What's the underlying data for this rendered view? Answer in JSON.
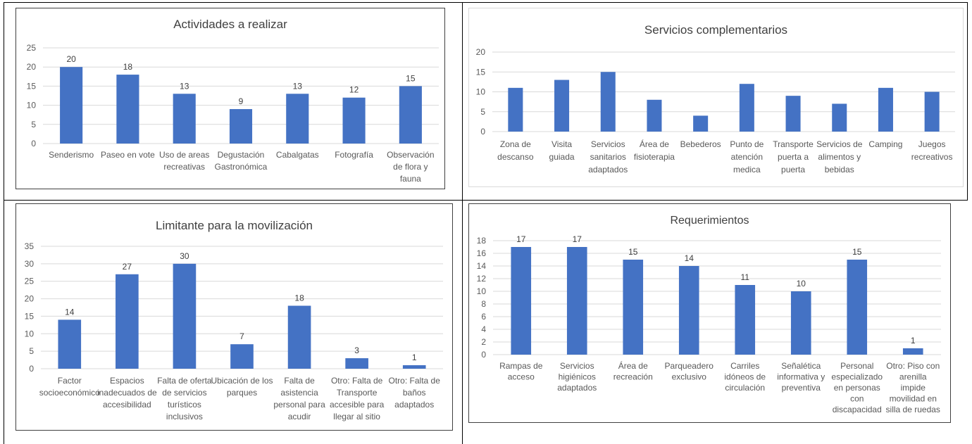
{
  "colors": {
    "bar": "#4472C4",
    "grid": "#d9d9d9",
    "text": "#595959"
  },
  "chart_data": [
    {
      "type": "bar",
      "title": "Actividades a realizar",
      "categories": [
        [
          "Senderismo"
        ],
        [
          "Paseo en vote"
        ],
        [
          "Uso de areas",
          "recreativas"
        ],
        [
          "Degustación",
          "Gastronómica"
        ],
        [
          "Cabalgatas"
        ],
        [
          "Fotografía"
        ],
        [
          "Observación",
          "de flora y",
          "fauna"
        ]
      ],
      "values": [
        20,
        18,
        13,
        9,
        13,
        12,
        15
      ],
      "data_labels": true,
      "ylim": [
        0,
        25
      ],
      "yticks": [
        0,
        5,
        10,
        15,
        20,
        25
      ],
      "grid": true,
      "xlabel": "",
      "ylabel": ""
    },
    {
      "type": "bar",
      "title": "Servicios complementarios",
      "categories": [
        [
          "Zona de",
          "descanso"
        ],
        [
          "Visita",
          "guiada"
        ],
        [
          "Servicios",
          "sanitarios",
          "adaptados"
        ],
        [
          "Área de",
          "fisioterapia"
        ],
        [
          "Bebederos"
        ],
        [
          "Punto de",
          "atención",
          "medica"
        ],
        [
          "Transporte",
          "puerta a",
          "puerta"
        ],
        [
          "Servicios de",
          "alimentos y",
          "bebidas"
        ],
        [
          "Camping"
        ],
        [
          "Juegos",
          "recreativos"
        ]
      ],
      "values": [
        11,
        13,
        15,
        8,
        4,
        12,
        9,
        7,
        11,
        10
      ],
      "data_labels": false,
      "ylim": [
        0,
        20
      ],
      "yticks": [
        0,
        5,
        10,
        15,
        20
      ],
      "grid": true,
      "xlabel": "",
      "ylabel": ""
    },
    {
      "type": "bar",
      "title": "Limitante para la movilización",
      "categories": [
        [
          "Factor",
          "socioeconómico"
        ],
        [
          "Espacios",
          "inadecuados de",
          "accesibilidad"
        ],
        [
          "Falta de oferta",
          "de servicios",
          "turísticos",
          "inclusivos"
        ],
        [
          "Ubicación de los",
          "parques"
        ],
        [
          "Falta de",
          "asistencia",
          "personal para",
          "acudir"
        ],
        [
          "Otro: Falta de",
          "Transporte",
          "accesible para",
          "llegar al sitio"
        ],
        [
          "Otro: Falta de",
          "baños",
          "adaptados"
        ]
      ],
      "values": [
        14,
        27,
        30,
        7,
        18,
        3,
        1
      ],
      "data_labels": true,
      "ylim": [
        0,
        35
      ],
      "yticks": [
        0,
        5,
        10,
        15,
        20,
        25,
        30,
        35
      ],
      "grid": true,
      "xlabel": "",
      "ylabel": ""
    },
    {
      "type": "bar",
      "title": "Requerimientos",
      "categories": [
        [
          "Rampas de",
          "acceso"
        ],
        [
          "Servicios",
          "higiénicos",
          "adaptados"
        ],
        [
          "Área de",
          "recreación"
        ],
        [
          "Parqueadero",
          "exclusivo"
        ],
        [
          "Carriles",
          "idóneos de",
          "circulación"
        ],
        [
          "Señalética",
          "informativa y",
          "preventiva"
        ],
        [
          "Personal",
          "especializado",
          "en personas",
          "con",
          "discapacidad"
        ],
        [
          "Otro: Piso con",
          "arenilla",
          "impide",
          "movilidad en",
          "silla de ruedas"
        ]
      ],
      "values": [
        17,
        17,
        15,
        14,
        11,
        10,
        15,
        1
      ],
      "data_labels": true,
      "ylim": [
        0,
        18
      ],
      "yticks": [
        0,
        2,
        4,
        6,
        8,
        10,
        12,
        14,
        16,
        18
      ],
      "grid": true,
      "xlabel": "",
      "ylabel": ""
    }
  ]
}
